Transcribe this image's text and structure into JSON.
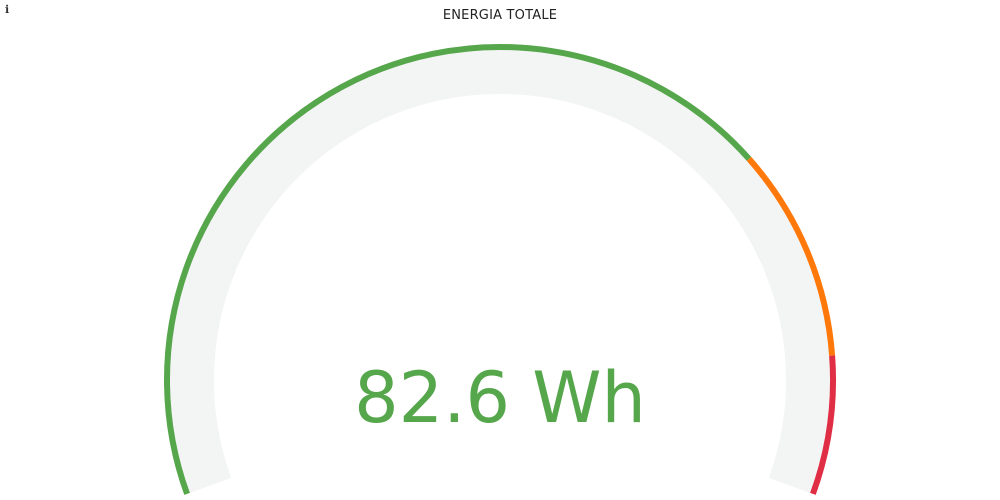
{
  "panel": {
    "title": "ENERGIA TOTALE",
    "info_icon": "info-icon"
  },
  "gauge": {
    "value": 82.6,
    "unit": "Wh",
    "display": "82.6 Wh",
    "min": 0,
    "max": 100,
    "thresholds": [
      {
        "from": 0,
        "to": 72,
        "color": "#56a64b"
      },
      {
        "from": 72,
        "to": 89,
        "color": "#ff780a"
      },
      {
        "from": 89,
        "to": 100,
        "color": "#e02f44"
      }
    ],
    "value_color": "#56a64b",
    "track_color": "#f3f4f4"
  }
}
